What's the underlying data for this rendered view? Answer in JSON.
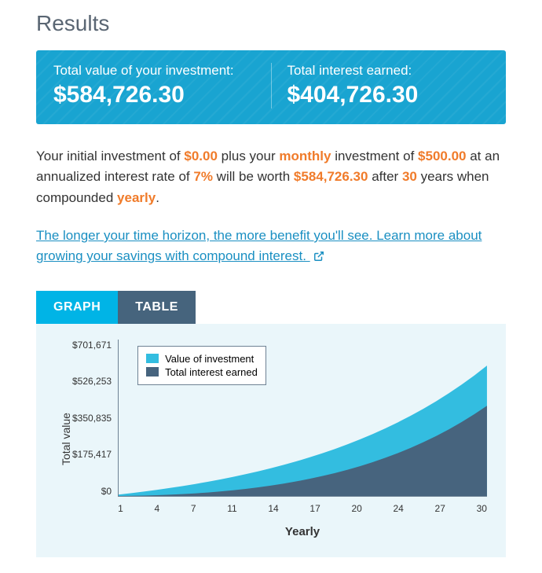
{
  "title": "Results",
  "banner": {
    "total_value_label": "Total value of your investment:",
    "total_value": "$584,726.30",
    "interest_label": "Total interest earned:",
    "interest_value": "$404,726.30",
    "bg_color": "#19a4d1"
  },
  "summary": {
    "t1": "Your initial investment of ",
    "initial": "$0.00",
    "t2": " plus your ",
    "freq_word": "monthly",
    "t3": " investment of ",
    "contribution": "$500.00",
    "t4": " at an annualized interest rate of ",
    "rate": "7%",
    "t5": " will be worth ",
    "future_value": "$584,726.30",
    "t6": " after ",
    "years": "30",
    "t7": " years when compounded ",
    "compound_word": "yearly",
    "t8": ".",
    "highlight_color": "#f07b2a"
  },
  "link": {
    "text": "The longer your time horizon, the more benefit you'll see. Learn more about growing your savings with compound interest. ",
    "color": "#1a8fc2"
  },
  "tabs": {
    "graph": "Graph",
    "table": "Table",
    "active_bg": "#00b4e6",
    "inactive_bg": "#46647d"
  },
  "chart": {
    "type": "area",
    "bg_color": "#eaf6fa",
    "axis_color": "#6e8294",
    "ylabel": "Total value",
    "xlabel": "Yearly",
    "y_ticks": [
      "$701,671",
      "$526,253",
      "$350,835",
      "$175,417",
      "$0"
    ],
    "x_ticks": [
      "1",
      "4",
      "7",
      "11",
      "14",
      "17",
      "20",
      "24",
      "27",
      "30"
    ],
    "legend": {
      "series1": "Value of investment",
      "series2": "Total interest earned",
      "color1": "#33bde0",
      "color2": "#47647e"
    },
    "ymax": 701671,
    "series_value": [
      {
        "x": 1,
        "y": 6189
      },
      {
        "x": 2,
        "y": 12810
      },
      {
        "x": 3,
        "y": 19896
      },
      {
        "x": 4,
        "y": 27478
      },
      {
        "x": 5,
        "y": 35590
      },
      {
        "x": 6,
        "y": 44270
      },
      {
        "x": 7,
        "y": 53558
      },
      {
        "x": 8,
        "y": 63495
      },
      {
        "x": 9,
        "y": 74128
      },
      {
        "x": 10,
        "y": 85506
      },
      {
        "x": 11,
        "y": 97680
      },
      {
        "x": 12,
        "y": 110707
      },
      {
        "x": 13,
        "y": 124644
      },
      {
        "x": 14,
        "y": 139558
      },
      {
        "x": 15,
        "y": 155515
      },
      {
        "x": 16,
        "y": 172589
      },
      {
        "x": 17,
        "y": 190859
      },
      {
        "x": 18,
        "y": 210408
      },
      {
        "x": 19,
        "y": 231325
      },
      {
        "x": 20,
        "y": 253706
      },
      {
        "x": 21,
        "y": 277654
      },
      {
        "x": 22,
        "y": 303278
      },
      {
        "x": 23,
        "y": 330696
      },
      {
        "x": 24,
        "y": 360033
      },
      {
        "x": 25,
        "y": 391424
      },
      {
        "x": 26,
        "y": 425012
      },
      {
        "x": 27,
        "y": 460951
      },
      {
        "x": 28,
        "y": 499406
      },
      {
        "x": 29,
        "y": 540553
      },
      {
        "x": 30,
        "y": 584726
      }
    ],
    "series_interest": [
      {
        "x": 1,
        "y": 189
      },
      {
        "x": 2,
        "y": 810
      },
      {
        "x": 3,
        "y": 1896
      },
      {
        "x": 4,
        "y": 3478
      },
      {
        "x": 5,
        "y": 5590
      },
      {
        "x": 6,
        "y": 8270
      },
      {
        "x": 7,
        "y": 11558
      },
      {
        "x": 8,
        "y": 15495
      },
      {
        "x": 9,
        "y": 20128
      },
      {
        "x": 10,
        "y": 25506
      },
      {
        "x": 11,
        "y": 31680
      },
      {
        "x": 12,
        "y": 38707
      },
      {
        "x": 13,
        "y": 46644
      },
      {
        "x": 14,
        "y": 55558
      },
      {
        "x": 15,
        "y": 65515
      },
      {
        "x": 16,
        "y": 76589
      },
      {
        "x": 17,
        "y": 88859
      },
      {
        "x": 18,
        "y": 102408
      },
      {
        "x": 19,
        "y": 117325
      },
      {
        "x": 20,
        "y": 133706
      },
      {
        "x": 21,
        "y": 151654
      },
      {
        "x": 22,
        "y": 171278
      },
      {
        "x": 23,
        "y": 192696
      },
      {
        "x": 24,
        "y": 216033
      },
      {
        "x": 25,
        "y": 241424
      },
      {
        "x": 26,
        "y": 269012
      },
      {
        "x": 27,
        "y": 298951
      },
      {
        "x": 28,
        "y": 331406
      },
      {
        "x": 29,
        "y": 366553
      },
      {
        "x": 30,
        "y": 404726
      }
    ]
  }
}
